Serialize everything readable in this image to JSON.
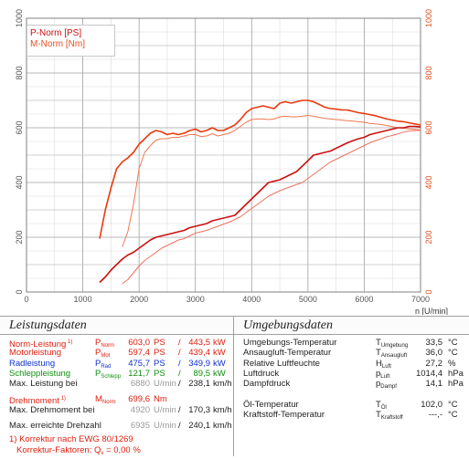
{
  "chart_data": {
    "type": "line",
    "x_unit_label": "n [U/min]",
    "xlim": [
      0,
      7000
    ],
    "x_ticks": [
      0,
      1000,
      2000,
      3000,
      4000,
      5000,
      6000,
      7000
    ],
    "x_tick_labels": [
      "0",
      "1000",
      "2000",
      "3000",
      "4000",
      "5000",
      "6000",
      "7000"
    ],
    "ylim_left": [
      0,
      1000
    ],
    "left_ticks": [
      "0",
      "200",
      "400",
      "600",
      "800",
      "1000"
    ],
    "ylim_right": [
      0,
      1000
    ],
    "right_ticks": [
      "0",
      "200",
      "400",
      "600",
      "800",
      "1000"
    ],
    "grid": true,
    "legend_position": "top-left",
    "legend": [
      "P-Norm [PS]",
      "M-Norm [Nm]"
    ],
    "series": [
      {
        "name": "M-Norm [Nm]",
        "color": "#e83a10",
        "width": 1.6,
        "x": [
          1300,
          1400,
          1500,
          1600,
          1700,
          1800,
          1900,
          2000,
          2100,
          2200,
          2300,
          2400,
          2500,
          2600,
          2700,
          2800,
          2900,
          3000,
          3100,
          3200,
          3300,
          3400,
          3500,
          3600,
          3700,
          3800,
          3900,
          4000,
          4100,
          4200,
          4300,
          4400,
          4500,
          4600,
          4700,
          4800,
          4900,
          5000,
          5100,
          5200,
          5300,
          5400,
          5500,
          5600,
          5700,
          5800,
          5900,
          6000,
          6100,
          6200,
          6300,
          6400,
          6500,
          6600,
          6700,
          6800,
          6900,
          7000
        ],
        "y": [
          195,
          300,
          380,
          450,
          475,
          490,
          510,
          540,
          560,
          580,
          590,
          585,
          575,
          580,
          575,
          580,
          590,
          595,
          585,
          590,
          600,
          590,
          590,
          600,
          610,
          630,
          655,
          670,
          675,
          680,
          675,
          670,
          690,
          695,
          690,
          695,
          700,
          700,
          695,
          685,
          675,
          670,
          668,
          665,
          665,
          660,
          655,
          652,
          648,
          644,
          638,
          632,
          628,
          624,
          622,
          618,
          614,
          610
        ]
      },
      {
        "name": "",
        "color": "#f07850",
        "width": 1.0,
        "x": [
          1700,
          1800,
          1900,
          2000,
          2100,
          2200,
          2300,
          2400,
          2500,
          2600,
          2700,
          2800,
          2900,
          3000,
          3100,
          3200,
          3300,
          3400,
          3500,
          3600,
          3700,
          3800,
          3900,
          4000,
          4100,
          4200,
          4300,
          4400,
          4500,
          4600,
          4700,
          4800,
          4900,
          5000,
          5100,
          5200,
          5300,
          5400,
          5500,
          5600,
          5700,
          5800,
          5900,
          6000,
          6100,
          6200,
          6300,
          6400,
          6500,
          6600,
          6700,
          6800,
          6900,
          7000
        ],
        "y": [
          165,
          220,
          320,
          450,
          510,
          535,
          555,
          560,
          560,
          565,
          565,
          570,
          575,
          575,
          568,
          570,
          578,
          570,
          575,
          580,
          590,
          605,
          620,
          630,
          632,
          632,
          630,
          632,
          640,
          642,
          640,
          640,
          642,
          645,
          642,
          638,
          634,
          632,
          630,
          628,
          626,
          624,
          622,
          620,
          616,
          614,
          612,
          608,
          604,
          600,
          598,
          596,
          594,
          592
        ]
      },
      {
        "name": "P-Norm [PS]",
        "color": "#cc1010",
        "width": 1.6,
        "x": [
          1300,
          1400,
          1500,
          1600,
          1700,
          1800,
          1900,
          2000,
          2100,
          2200,
          2300,
          2400,
          2500,
          2600,
          2700,
          2800,
          2900,
          3000,
          3100,
          3200,
          3300,
          3400,
          3500,
          3600,
          3700,
          3800,
          3900,
          4000,
          4100,
          4200,
          4300,
          4400,
          4500,
          4600,
          4700,
          4800,
          4900,
          5000,
          5100,
          5200,
          5300,
          5400,
          5500,
          5600,
          5700,
          5800,
          5900,
          6000,
          6100,
          6200,
          6300,
          6400,
          6500,
          6600,
          6700,
          6800,
          6900,
          7000
        ],
        "y": [
          35,
          55,
          80,
          100,
          120,
          135,
          145,
          160,
          175,
          190,
          200,
          205,
          210,
          215,
          220,
          225,
          235,
          240,
          245,
          250,
          260,
          265,
          270,
          275,
          280,
          300,
          320,
          340,
          360,
          380,
          400,
          405,
          410,
          420,
          430,
          440,
          460,
          480,
          500,
          505,
          510,
          515,
          525,
          535,
          545,
          553,
          560,
          565,
          575,
          580,
          585,
          590,
          595,
          600,
          600,
          605,
          605,
          603
        ]
      },
      {
        "name": "",
        "color": "#ee7060",
        "width": 1.0,
        "x": [
          1700,
          1800,
          1900,
          2000,
          2100,
          2200,
          2300,
          2400,
          2500,
          2600,
          2700,
          2800,
          2900,
          3000,
          3100,
          3200,
          3300,
          3400,
          3500,
          3600,
          3700,
          3800,
          3900,
          4000,
          4100,
          4200,
          4300,
          4400,
          4500,
          4600,
          4700,
          4800,
          4900,
          5000,
          5100,
          5200,
          5300,
          5400,
          5500,
          5600,
          5700,
          5800,
          5900,
          6000,
          6100,
          6200,
          6300,
          6400,
          6500,
          6600,
          6700,
          6800,
          6900,
          7000
        ],
        "y": [
          30,
          45,
          70,
          95,
          115,
          130,
          145,
          160,
          170,
          180,
          190,
          195,
          205,
          215,
          220,
          225,
          233,
          240,
          248,
          255,
          265,
          275,
          290,
          305,
          320,
          335,
          350,
          360,
          370,
          378,
          385,
          393,
          400,
          415,
          430,
          445,
          460,
          475,
          485,
          495,
          505,
          515,
          525,
          535,
          545,
          553,
          560,
          567,
          572,
          578,
          584,
          588,
          590,
          590
        ]
      }
    ]
  },
  "colors": {
    "left_axis_text": "#555555",
    "right_axis_text": "#e05020",
    "grid_major": "#a0a0a0",
    "grid_minor": "#dcdcdc"
  },
  "left_section": {
    "title": "Leistungsdaten",
    "rows": [
      {
        "label": "Norm-Leistung",
        "note": "1)",
        "symbol": "P",
        "sub": "Norm",
        "v1": "603,0",
        "u1": "PS",
        "sep": "/",
        "v2": "443,5",
        "u2": "kW",
        "color": "red"
      },
      {
        "label": "Motorleistung",
        "note": "",
        "symbol": "P",
        "sub": "Mot",
        "v1": "597,4",
        "u1": "PS",
        "sep": "/",
        "v2": "439,4",
        "u2": "kW",
        "color": "red"
      },
      {
        "label": "Radleistung",
        "note": "",
        "symbol": "P",
        "sub": "Rad",
        "v1": "475,7",
        "u1": "PS",
        "sep": "/",
        "v2": "349,9",
        "u2": "kW",
        "color": "blue"
      },
      {
        "label": "Schleppleistung",
        "note": "",
        "symbol": "P",
        "sub": "Schlepp",
        "v1": "121,7",
        "u1": "PS",
        "sep": "/",
        "v2": "89,5",
        "u2": "kW",
        "color": "green"
      },
      {
        "label": "Max. Leistung bei",
        "note": "",
        "symbol": "",
        "sub": "",
        "v1": "6880",
        "u1": "U/min",
        "sep": "/",
        "v2": "238,1",
        "u2": "km/h",
        "color": "plain"
      },
      {
        "label": "Drehmoment",
        "note": "1)",
        "symbol": "M",
        "sub": "Norm",
        "v1": "699,6",
        "u1": "Nm",
        "sep": "",
        "v2": "",
        "u2": "",
        "color": "red"
      },
      {
        "label": "Max. Drehmoment bei",
        "note": "",
        "symbol": "",
        "sub": "",
        "v1": "4920",
        "u1": "U/min",
        "sep": "/",
        "v2": "170,3",
        "u2": "km/h",
        "color": "plain"
      },
      {
        "label": "Max. erreichte Drehzahl",
        "note": "",
        "symbol": "",
        "sub": "",
        "v1": "6935",
        "u1": "U/min",
        "sep": "/",
        "v2": "240,1",
        "u2": "km/h",
        "color": "plain"
      }
    ],
    "footnote_1": "1) Korrektur nach EWG 80/1269",
    "footnote_2_prefix": "Korrektur-Faktoren: Q",
    "footnote_2_sub": "v",
    "footnote_2_value": "=   0,00 %"
  },
  "right_section": {
    "title": "Umgebungsdaten",
    "rows": [
      {
        "label": "Umgebungs-Temperatur",
        "symbol": "T",
        "sub": "Umgebung",
        "value": "33,5",
        "unit": "°C"
      },
      {
        "label": "Ansaugluft-Temperatur",
        "symbol": "T",
        "sub": "Ansaugluft",
        "value": "36,0",
        "unit": "°C"
      },
      {
        "label": "Relative Luftfeuchte",
        "symbol": "H",
        "sub": "Luft",
        "value": "27,2",
        "unit": "%"
      },
      {
        "label": "Luftdruck",
        "symbol": "p",
        "sub": "Luft",
        "value": "1014,4",
        "unit": "hPa"
      },
      {
        "label": "Dampfdruck",
        "symbol": "p",
        "sub": "Dampf",
        "value": "14,1",
        "unit": "hPa"
      },
      {
        "label": "",
        "symbol": "",
        "sub": "",
        "value": "",
        "unit": ""
      },
      {
        "label": "Öl-Temperatur",
        "symbol": "T",
        "sub": "Öl",
        "value": "102,0",
        "unit": "°C"
      },
      {
        "label": "Kraftstoff-Temperatur",
        "symbol": "T",
        "sub": "Kraftstoff",
        "value": "---,-",
        "unit": "°C"
      }
    ]
  }
}
